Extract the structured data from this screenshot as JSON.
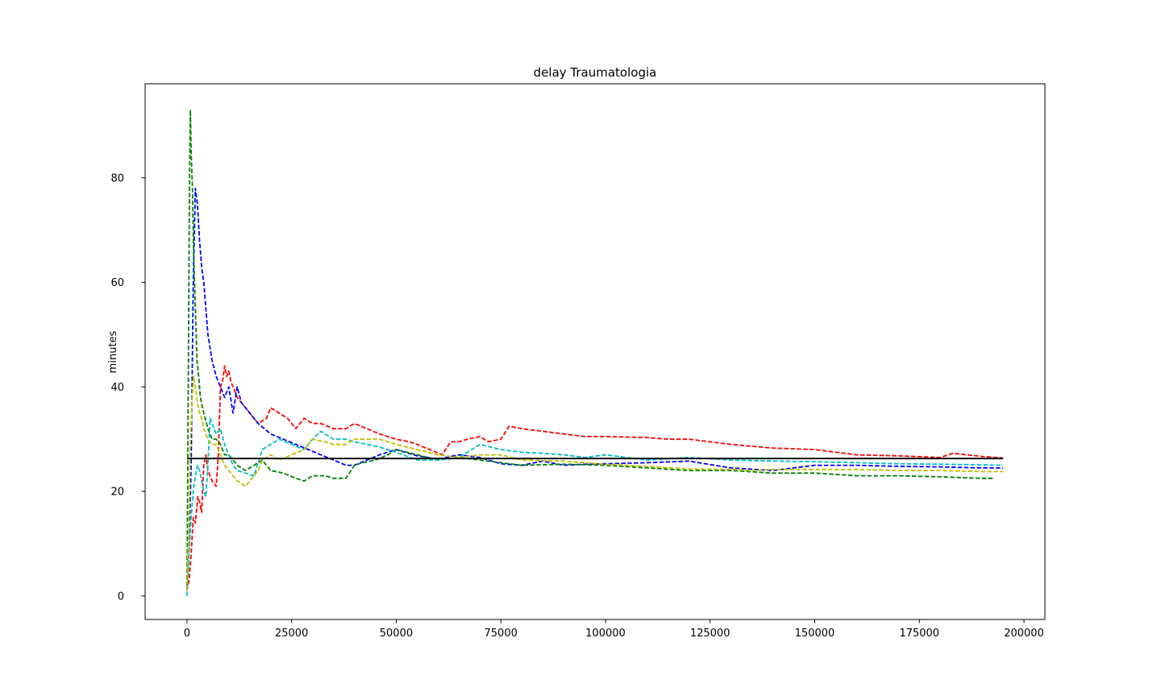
{
  "chart_data": {
    "type": "line",
    "title": "delay Traumatologia",
    "xlabel": "",
    "ylabel": "minutes",
    "xlim": [
      -10000,
      205000
    ],
    "ylim": [
      -4.5,
      98
    ],
    "xticks": [
      0,
      25000,
      50000,
      75000,
      100000,
      125000,
      150000,
      175000,
      200000
    ],
    "yticks": [
      0,
      20,
      40,
      60,
      80
    ],
    "grid": false,
    "legend": "none",
    "series": [
      {
        "color": "#ff0000",
        "style": "dashed",
        "x": [
          0,
          500,
          1000,
          1500,
          2000,
          2600,
          3000,
          3500,
          4000,
          4500,
          5000,
          6000,
          7000,
          7500,
          8000,
          8500,
          9000,
          9500,
          10000,
          10500,
          11000,
          12000,
          13000,
          14000,
          15000,
          17000,
          19000,
          20000,
          22000,
          24000,
          26000,
          28000,
          30000,
          32000,
          35000,
          38000,
          40000,
          43000,
          46000,
          50000,
          53000,
          55000,
          58000,
          61000,
          63000,
          65000,
          67000,
          70000,
          72000,
          75000,
          77000,
          80000,
          85000,
          90000,
          95000,
          100000,
          110000,
          115000,
          120000,
          130000,
          140000,
          150000,
          160000,
          170000,
          180000,
          183000,
          190000,
          195000
        ],
        "y": [
          1,
          3,
          8,
          15,
          14,
          19,
          18,
          16,
          25,
          27,
          24,
          22,
          21,
          27,
          40,
          41,
          44,
          42,
          43,
          41,
          40,
          38,
          37,
          36,
          35,
          33,
          34,
          36,
          35,
          34,
          32,
          34,
          33,
          33,
          32,
          32,
          33,
          32,
          31,
          30,
          29.5,
          29,
          28,
          27,
          29.5,
          29.5,
          30,
          30.5,
          29.5,
          30,
          32.5,
          32,
          31.5,
          31,
          30.5,
          30.5,
          30.3,
          30,
          30,
          29,
          28.3,
          28,
          27,
          26.8,
          26.5,
          27.3,
          26.7,
          26.4
        ]
      },
      {
        "color": "#0000ff",
        "style": "dashed",
        "x": [
          0,
          500,
          1000,
          1500,
          2000,
          2500,
          3000,
          3500,
          4000,
          5000,
          6000,
          7000,
          8000,
          9000,
          10000,
          11000,
          12000,
          13000,
          15000,
          17000,
          20000,
          23000,
          26000,
          29000,
          32000,
          35000,
          38000,
          40000,
          43000,
          46000,
          50000,
          55000,
          60000,
          65000,
          70000,
          75000,
          80000,
          85000,
          90000,
          95000,
          100000,
          110000,
          120000,
          130000,
          140000,
          150000,
          160000,
          170000,
          180000,
          190000,
          195000
        ],
        "y": [
          1,
          10,
          25,
          60,
          78,
          75,
          68,
          63,
          60,
          50,
          45,
          42,
          40,
          38,
          40,
          35,
          40,
          37,
          35,
          33,
          31,
          30,
          29,
          28,
          27,
          26,
          25,
          25,
          26,
          27,
          28,
          26.8,
          26.2,
          27,
          26.5,
          25.3,
          25,
          25.8,
          25,
          25.2,
          25.3,
          25.5,
          25.8,
          24.5,
          24,
          25,
          25,
          24.8,
          24.7,
          24.5,
          24.5
        ]
      },
      {
        "color": "#008000",
        "style": "dashed",
        "x": [
          0,
          300,
          600,
          800,
          1000,
          1300,
          1600,
          2000,
          2400,
          2800,
          3200,
          4000,
          5000,
          6000,
          7000,
          8000,
          9000,
          10000,
          12000,
          14000,
          16000,
          18000,
          20000,
          23000,
          26000,
          28000,
          30000,
          33000,
          35000,
          38000,
          40000,
          42000,
          45000,
          48000,
          50000,
          55000,
          60000,
          65000,
          70000,
          75000,
          80000,
          90000,
          100000,
          110000,
          120000,
          130000,
          140000,
          150000,
          160000,
          170000,
          180000,
          190000,
          193000
        ],
        "y": [
          2,
          40,
          78,
          93,
          85,
          78,
          65,
          55,
          45,
          42,
          38,
          35,
          32,
          30,
          30,
          29,
          27,
          27,
          25,
          24,
          25,
          26,
          24,
          23.5,
          22.5,
          22,
          23,
          23,
          22.5,
          22.5,
          25,
          25.5,
          26,
          27,
          28,
          27,
          26,
          26.5,
          26,
          25.5,
          25,
          25.2,
          25,
          24.5,
          24,
          24,
          23.5,
          23.5,
          23,
          23,
          22.8,
          22.5,
          22.5
        ]
      },
      {
        "color": "#00bfbf",
        "style": "dashed",
        "x": [
          0,
          300,
          600,
          1000,
          1500,
          2000,
          2500,
          3000,
          3500,
          4000,
          4500,
          5000,
          5500,
          6000,
          7000,
          8000,
          9000,
          10000,
          11000,
          12000,
          14000,
          16000,
          18000,
          20000,
          22000,
          25000,
          28000,
          30000,
          32000,
          35000,
          38000,
          40000,
          43000,
          46000,
          50000,
          55000,
          60000,
          65000,
          70000,
          75000,
          80000,
          85000,
          90000,
          95000,
          100000,
          110000,
          120000,
          130000,
          140000,
          150000,
          160000,
          170000,
          180000,
          190000,
          195000
        ],
        "y": [
          0,
          5,
          10,
          15,
          20,
          23,
          25,
          24,
          22,
          20,
          19,
          25,
          34,
          33,
          31,
          32,
          29,
          27,
          25,
          24,
          23.5,
          23,
          28,
          29,
          30,
          29,
          28,
          30,
          31.5,
          30,
          30,
          29.5,
          29,
          28.5,
          27.5,
          26,
          26,
          26.5,
          29,
          28,
          27.5,
          27.3,
          27,
          26.5,
          27,
          26,
          26.5,
          26,
          25.8,
          25.7,
          25.5,
          25.3,
          25.2,
          25.1,
          25
        ]
      },
      {
        "color": "#bfbf00",
        "style": "dashed",
        "x": [
          0,
          500,
          800,
          1200,
          1600,
          2000,
          2500,
          3000,
          3500,
          4000,
          5000,
          6000,
          7000,
          8000,
          9000,
          10000,
          12000,
          14000,
          15000,
          16000,
          17000,
          18000,
          20000,
          22000,
          25000,
          28000,
          30000,
          33000,
          35000,
          38000,
          40000,
          43000,
          46000,
          50000,
          55000,
          60000,
          65000,
          70000,
          75000,
          80000,
          90000,
          100000,
          110000,
          120000,
          130000,
          135000,
          140000,
          150000,
          160000,
          170000,
          180000,
          190000,
          195000
        ],
        "y": [
          1,
          15,
          30,
          37,
          42,
          40,
          37,
          35,
          34,
          32,
          30,
          29,
          29,
          27,
          25,
          24,
          22,
          21,
          22,
          23,
          24,
          26,
          27,
          26,
          27,
          28,
          30,
          29.5,
          29,
          29,
          30,
          30,
          30,
          29,
          28,
          27,
          26.5,
          27,
          27,
          26,
          25.8,
          25.2,
          24.8,
          24.3,
          24.2,
          24,
          24.2,
          24.2,
          24.2,
          24,
          24,
          23.8,
          23.8
        ]
      },
      {
        "color": "#000000",
        "style": "solid",
        "x": [
          0,
          195000
        ],
        "y": [
          26.3,
          26.3
        ]
      }
    ]
  }
}
